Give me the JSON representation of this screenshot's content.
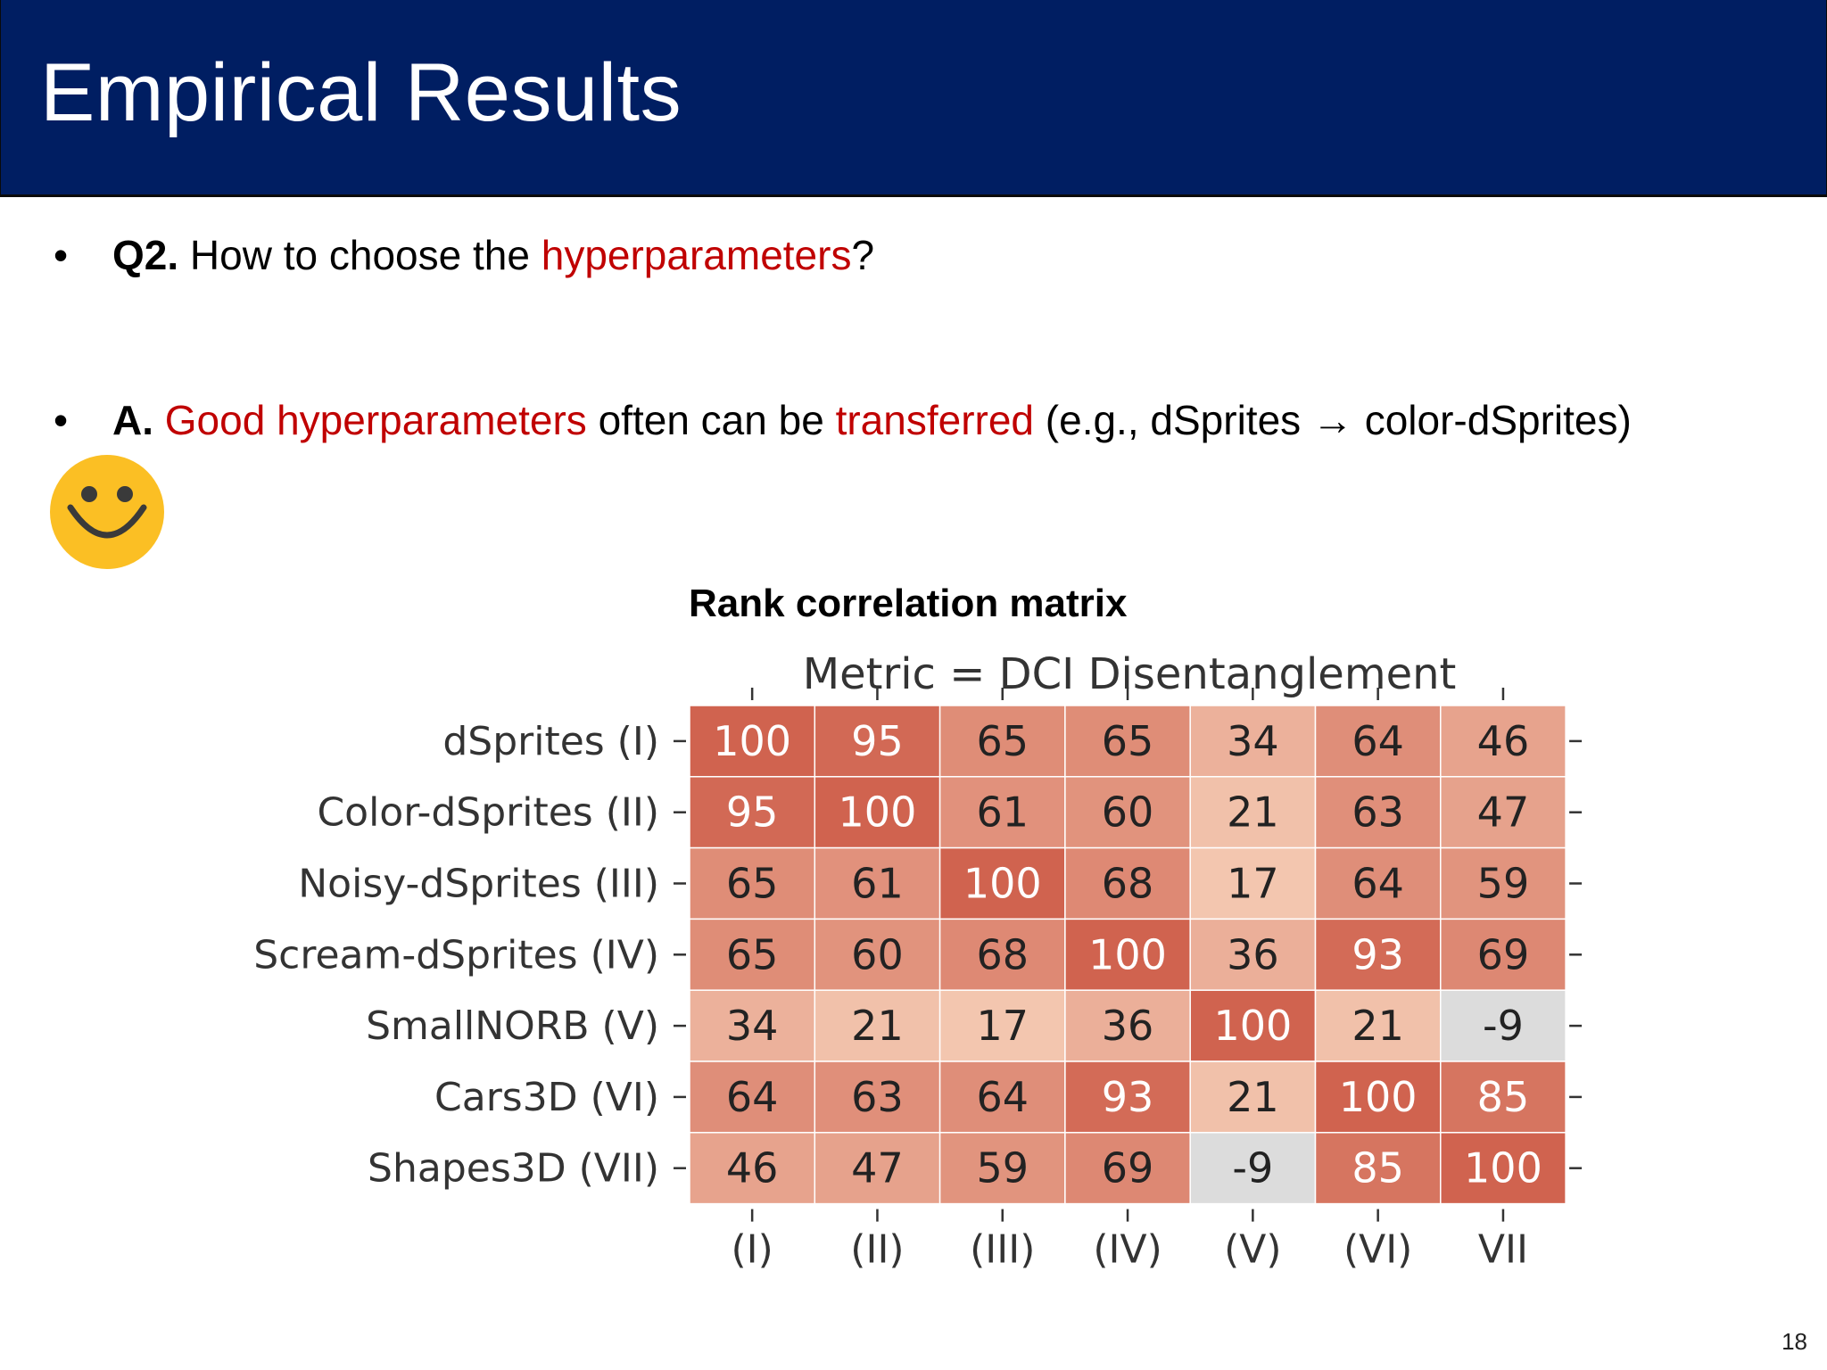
{
  "slide": {
    "title": "Empirical Results",
    "page_number": "18"
  },
  "bullets": {
    "q2": {
      "label": "Q2.",
      "text_a": " How to choose the ",
      "highlight": "hyperparameters",
      "text_b": "?"
    },
    "a": {
      "label": "A.",
      "text_a": " ",
      "highlight_1": "Good hyperparameters",
      "text_b": " often can be ",
      "highlight_2": "transferred",
      "text_c": " (e.g., dSprites → color-dSprites)"
    }
  },
  "icons": {
    "smiley": "smiley-face-icon",
    "smiley_color": "#fbbf24"
  },
  "chart_heading": "Rank correlation matrix",
  "chart_data": {
    "type": "heatmap",
    "title": "Metric = DCI Disentanglement",
    "row_labels": [
      "dSprites (I)",
      "Color-dSprites (II)",
      "Noisy-dSprites (III)",
      "Scream-dSprites (IV)",
      "SmallNORB (V)",
      "Cars3D (VI)",
      "Shapes3D (VII)"
    ],
    "col_labels": [
      "(I)",
      "(II)",
      "(III)",
      "(IV)",
      "(V)",
      "(VI)",
      "VII"
    ],
    "values": [
      [
        100,
        95,
        65,
        65,
        34,
        64,
        46
      ],
      [
        95,
        100,
        61,
        60,
        21,
        63,
        47
      ],
      [
        65,
        61,
        100,
        68,
        17,
        64,
        59
      ],
      [
        65,
        60,
        68,
        100,
        36,
        93,
        69
      ],
      [
        34,
        21,
        17,
        36,
        100,
        21,
        -9
      ],
      [
        64,
        63,
        64,
        93,
        21,
        100,
        85
      ],
      [
        46,
        47,
        59,
        69,
        -9,
        85,
        100
      ]
    ],
    "colors": {
      "high": "#d0634f",
      "low": "#f4c8b1",
      "negative": "#dcdcdc",
      "text_light": "#ffffff",
      "text_dark": "#222222"
    }
  }
}
